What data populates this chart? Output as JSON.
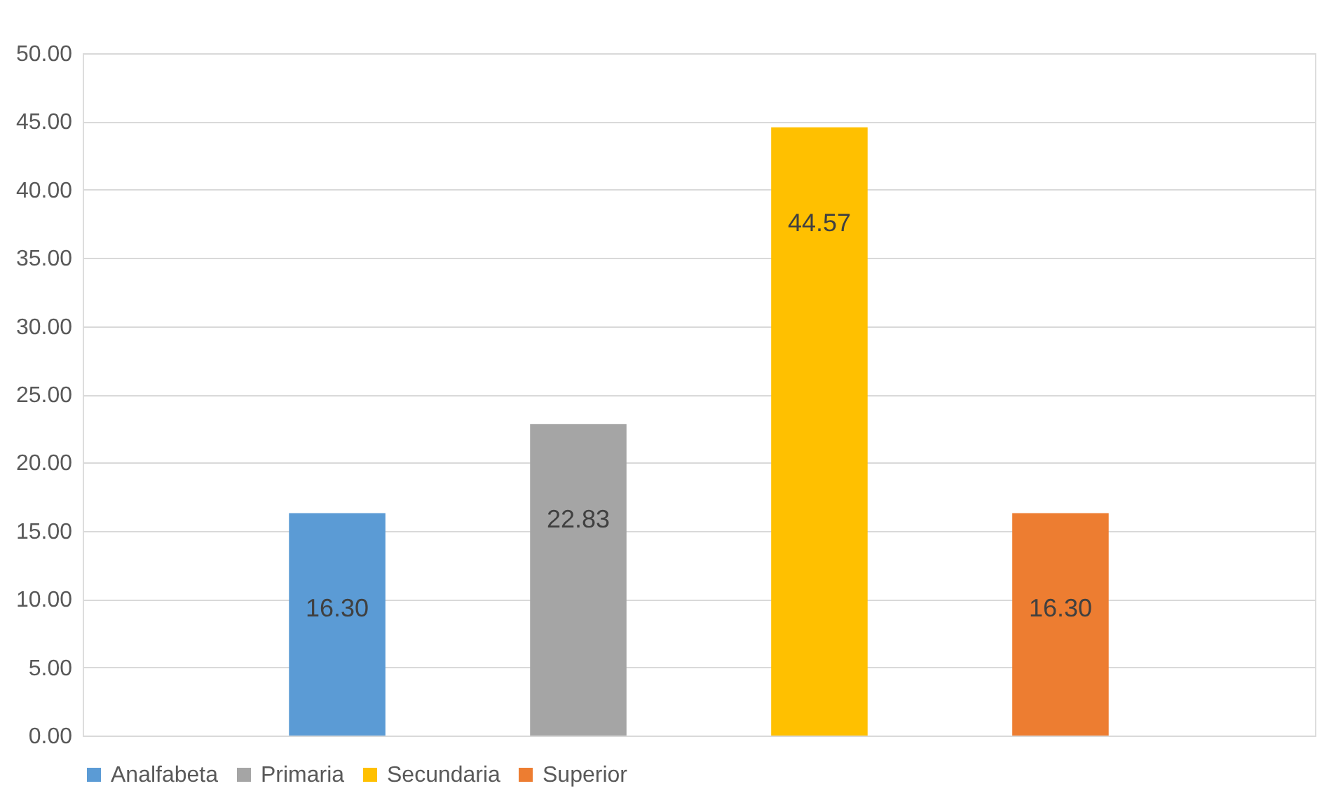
{
  "chart_data": {
    "type": "bar",
    "categories": [
      null
    ],
    "series": [
      {
        "name": "Analfabeta",
        "color": "#5b9bd5",
        "values": [
          16.3
        ],
        "value_labels": [
          "16.30"
        ]
      },
      {
        "name": "Primaria",
        "color": "#a5a5a5",
        "values": [
          22.83
        ],
        "value_labels": [
          "22.83"
        ]
      },
      {
        "name": "Secundaria",
        "color": "#ffc000",
        "values": [
          44.57
        ],
        "value_labels": [
          "44.57"
        ]
      },
      {
        "name": "Superior",
        "color": "#ed7d31",
        "values": [
          16.3
        ],
        "value_labels": [
          "16.30"
        ]
      }
    ],
    "ylim": [
      0,
      50
    ],
    "yticks": [
      {
        "value": 0,
        "label": "0.00"
      },
      {
        "value": 5,
        "label": "5.00"
      },
      {
        "value": 10,
        "label": "10.00"
      },
      {
        "value": 15,
        "label": "15.00"
      },
      {
        "value": 20,
        "label": "20.00"
      },
      {
        "value": 25,
        "label": "25.00"
      },
      {
        "value": 30,
        "label": "30.00"
      },
      {
        "value": 35,
        "label": "35.00"
      },
      {
        "value": 40,
        "label": "40.00"
      },
      {
        "value": 45,
        "label": "45.00"
      },
      {
        "value": 50,
        "label": "50.00"
      }
    ],
    "grid": "y",
    "legend": "bottom"
  }
}
